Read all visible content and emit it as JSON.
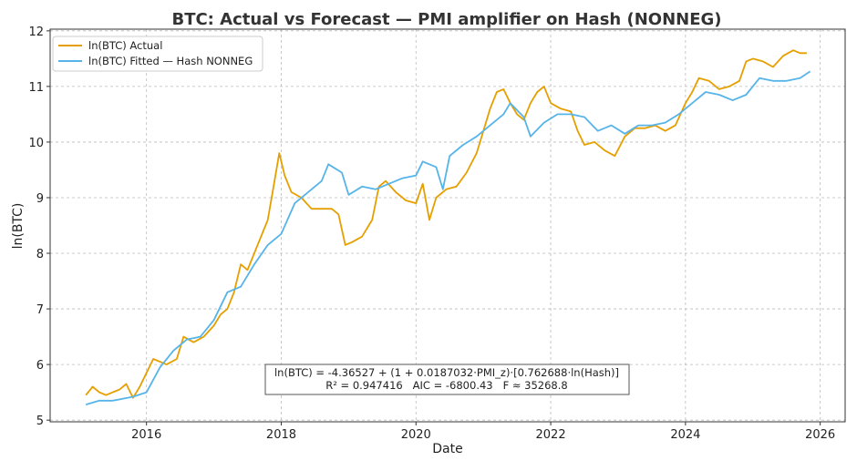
{
  "chart_data": {
    "type": "line",
    "title": "BTC: Actual vs Forecast — PMI amplifier on Hash (NONNEG)",
    "xlabel": "Date",
    "ylabel": "ln(BTC)",
    "xlim": [
      2014.57,
      2026.37
    ],
    "ylim": [
      4.97,
      12.03
    ],
    "xticks": [
      2016,
      2018,
      2020,
      2022,
      2024,
      2026
    ],
    "yticks": [
      5,
      6,
      7,
      8,
      9,
      10,
      11,
      12
    ],
    "grid": true,
    "legend_position": "top-left",
    "annotation": {
      "line1": "ln(BTC) = -4.36527 + (1 + 0.0187032·PMI_z)·[0.762688·ln(Hash)]",
      "line2": "R² = 0.947416   AIC = -6800.43   F ≈ 35268.8"
    },
    "series": [
      {
        "name": "ln(BTC) Actual",
        "color": "#E69F00",
        "x": [
          2015.1,
          2015.2,
          2015.3,
          2015.4,
          2015.5,
          2015.6,
          2015.7,
          2015.8,
          2015.9,
          2016.0,
          2016.1,
          2016.2,
          2016.3,
          2016.45,
          2016.55,
          2016.7,
          2016.85,
          2017.0,
          2017.1,
          2017.2,
          2017.3,
          2017.4,
          2017.5,
          2017.6,
          2017.7,
          2017.8,
          2017.9,
          2017.97,
          2018.05,
          2018.15,
          2018.3,
          2018.45,
          2018.6,
          2018.75,
          2018.85,
          2018.95,
          2019.05,
          2019.2,
          2019.35,
          2019.45,
          2019.55,
          2019.7,
          2019.85,
          2020.0,
          2020.1,
          2020.2,
          2020.3,
          2020.45,
          2020.6,
          2020.75,
          2020.9,
          2021.0,
          2021.1,
          2021.2,
          2021.3,
          2021.4,
          2021.5,
          2021.6,
          2021.7,
          2021.8,
          2021.9,
          2022.0,
          2022.15,
          2022.3,
          2022.4,
          2022.5,
          2022.65,
          2022.8,
          2022.95,
          2023.1,
          2023.25,
          2023.4,
          2023.55,
          2023.7,
          2023.85,
          2024.0,
          2024.1,
          2024.2,
          2024.35,
          2024.5,
          2024.65,
          2024.8,
          2024.9,
          2025.0,
          2025.15,
          2025.3,
          2025.45,
          2025.6,
          2025.7,
          2025.8
        ],
        "values": [
          5.45,
          5.6,
          5.5,
          5.45,
          5.5,
          5.55,
          5.65,
          5.4,
          5.6,
          5.85,
          6.1,
          6.05,
          6.0,
          6.1,
          6.5,
          6.4,
          6.5,
          6.7,
          6.9,
          7.0,
          7.3,
          7.8,
          7.7,
          8.0,
          8.3,
          8.6,
          9.3,
          9.8,
          9.4,
          9.1,
          9.0,
          8.8,
          8.8,
          8.8,
          8.7,
          8.15,
          8.2,
          8.3,
          8.6,
          9.2,
          9.3,
          9.1,
          8.95,
          8.9,
          9.25,
          8.6,
          9.0,
          9.15,
          9.2,
          9.45,
          9.8,
          10.2,
          10.6,
          10.9,
          10.95,
          10.7,
          10.5,
          10.4,
          10.7,
          10.9,
          11.0,
          10.7,
          10.6,
          10.55,
          10.2,
          9.95,
          10.0,
          9.85,
          9.75,
          10.1,
          10.25,
          10.25,
          10.3,
          10.2,
          10.3,
          10.7,
          10.9,
          11.15,
          11.1,
          10.95,
          11.0,
          11.1,
          11.45,
          11.5,
          11.45,
          11.35,
          11.55,
          11.65,
          11.6,
          11.6
        ]
      },
      {
        "name": "ln(BTC) Fitted — Hash NONNEG",
        "color": "#56B4E9",
        "x": [
          2015.1,
          2015.3,
          2015.5,
          2015.8,
          2016.0,
          2016.2,
          2016.4,
          2016.6,
          2016.8,
          2017.0,
          2017.2,
          2017.4,
          2017.6,
          2017.8,
          2018.0,
          2018.2,
          2018.4,
          2018.6,
          2018.7,
          2018.9,
          2019.0,
          2019.2,
          2019.4,
          2019.6,
          2019.8,
          2020.0,
          2020.1,
          2020.3,
          2020.4,
          2020.5,
          2020.7,
          2020.9,
          2021.1,
          2021.3,
          2021.4,
          2021.6,
          2021.7,
          2021.9,
          2022.1,
          2022.3,
          2022.5,
          2022.7,
          2022.9,
          2023.1,
          2023.3,
          2023.5,
          2023.7,
          2023.9,
          2024.1,
          2024.3,
          2024.5,
          2024.7,
          2024.9,
          2025.1,
          2025.3,
          2025.5,
          2025.7,
          2025.85
        ],
        "values": [
          5.28,
          5.35,
          5.35,
          5.42,
          5.5,
          5.95,
          6.25,
          6.45,
          6.5,
          6.8,
          7.3,
          7.4,
          7.8,
          8.15,
          8.35,
          8.9,
          9.1,
          9.3,
          9.6,
          9.45,
          9.05,
          9.2,
          9.15,
          9.25,
          9.35,
          9.4,
          9.65,
          9.55,
          9.15,
          9.75,
          9.95,
          10.1,
          10.3,
          10.5,
          10.7,
          10.45,
          10.1,
          10.35,
          10.5,
          10.5,
          10.45,
          10.2,
          10.3,
          10.15,
          10.3,
          10.3,
          10.35,
          10.5,
          10.7,
          10.9,
          10.85,
          10.75,
          10.85,
          11.15,
          11.1,
          11.1,
          11.15,
          11.27
        ]
      }
    ]
  }
}
